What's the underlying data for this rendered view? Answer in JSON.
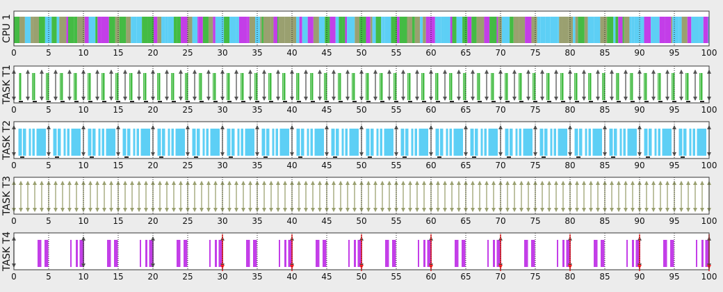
{
  "colors": {
    "background": "#ececec",
    "panel": "#ffffff",
    "frame": "#333333",
    "grid": "#222222",
    "task_t1": "#44bb44",
    "task_t2": "#5dcff5",
    "task_t3": "#9aa070",
    "task_t4": "#c33ee8",
    "arrow": "#555555",
    "deadline_miss": "#ff2222"
  },
  "chart_data": {
    "type": "scheduling-timeline",
    "xlim": [
      0,
      100
    ],
    "x_ticks": [
      "0",
      "5",
      "10",
      "15",
      "20",
      "25",
      "30",
      "35",
      "40",
      "45",
      "50",
      "55",
      "60",
      "65",
      "70",
      "75",
      "80",
      "85",
      "90",
      "95",
      "100"
    ],
    "grid": "dotted vertical every 5",
    "rows": [
      {
        "label": "CPU 1",
        "kind": "cpu",
        "tasks_shown": [
          "TASK T1",
          "TASK T2",
          "TASK T3",
          "TASK T4"
        ]
      },
      {
        "label": "TASK T1",
        "kind": "task",
        "color_key": "task_t1",
        "period": 2,
        "offset": 0,
        "exec": [
          [
            0.75,
            0.3
          ],
          [
            2.6,
            0.1
          ]
        ]
      },
      {
        "label": "TASK T2",
        "kind": "task",
        "color_key": "task_t2",
        "period": 5,
        "offset": 0,
        "exec": [
          [
            0.65,
            0.5
          ],
          [
            1.3,
            0.45
          ],
          [
            2.15,
            0.3
          ],
          [
            2.65,
            0.35
          ],
          [
            3.25,
            1.35
          ]
        ]
      },
      {
        "label": "TASK T3",
        "kind": "task",
        "color_key": "task_t3",
        "period": 1,
        "offset": 0,
        "exec": []
      },
      {
        "label": "TASK T4",
        "kind": "task",
        "color_key": "task_t4",
        "period": 10,
        "offset": 0,
        "deadline_miss_period": 10,
        "deadline_miss_from": 30,
        "exec": [
          [
            3.4,
            0.55
          ],
          [
            4.4,
            0.55
          ],
          [
            8.1,
            0.2
          ],
          [
            8.9,
            0.3
          ],
          [
            9.45,
            0.65
          ]
        ]
      }
    ]
  }
}
